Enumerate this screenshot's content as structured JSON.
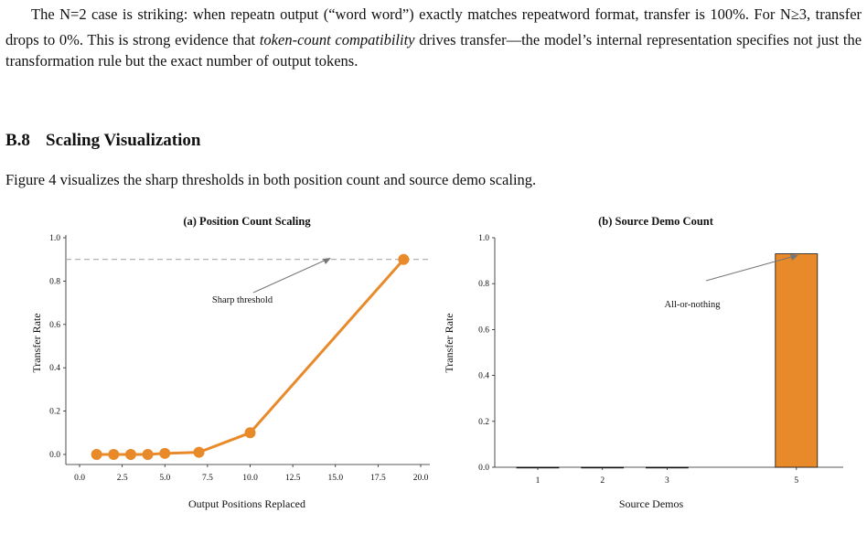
{
  "paragraph": {
    "p1": "The N=2 case is striking: when repeat",
    "p1_sub1": "n output (“word word”) exactly matches repeat",
    "p1_sub2": "word format, transfer is 100%. For N≥3, transfer drops to 0%. This is strong evidence that ",
    "emph": "token-count compatibility",
    "p2": " drives transfer—the model’s internal representation specifies not just the transformation rule but the exact number of output tokens."
  },
  "section": {
    "number": "B.8",
    "title": "Scaling Visualization",
    "intro": "Figure 4 visualizes the sharp thresholds in both position count and source demo scaling."
  },
  "chart_data": [
    {
      "type": "line",
      "title": "(a) Position Count Scaling",
      "xlabel": "Output Positions Replaced",
      "ylabel": "Transfer Rate",
      "xlim": [
        0,
        20
      ],
      "ylim": [
        0,
        1.0
      ],
      "xticks": [
        "0.0",
        "2.5",
        "5.0",
        "7.5",
        "10.0",
        "12.5",
        "15.0",
        "17.5",
        "20.0"
      ],
      "yticks": [
        "0.0",
        "0.2",
        "0.4",
        "0.6",
        "0.8",
        "1.0"
      ],
      "x": [
        1,
        2,
        3,
        4,
        5,
        7,
        10,
        19
      ],
      "y": [
        0.0,
        0.0,
        0.0,
        0.0,
        0.005,
        0.01,
        0.1,
        0.9
      ],
      "reference_line_y": 0.9,
      "annotation": "Sharp threshold",
      "color": "#E8892A",
      "grid": false
    },
    {
      "type": "bar",
      "title": "(b) Source Demo Count",
      "xlabel": "Source Demos",
      "ylabel": "Transfer Rate",
      "ylim": [
        0,
        1.0
      ],
      "yticks": [
        "0.0",
        "0.2",
        "0.4",
        "0.6",
        "0.8",
        "1.0"
      ],
      "categories": [
        "1",
        "2",
        "3",
        "5"
      ],
      "values": [
        0.0,
        0.0,
        0.0,
        0.93
      ],
      "annotation": "All-or-nothing",
      "color": "#E8892A",
      "grid": false
    }
  ]
}
